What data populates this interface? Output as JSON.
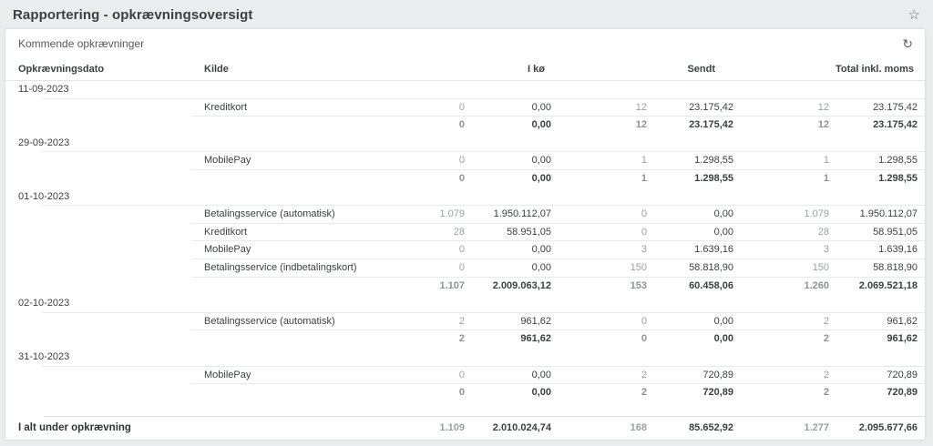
{
  "page": {
    "title": "Rapportering - opkrævningsoversigt"
  },
  "panel": {
    "title": "Kommende opkrævninger"
  },
  "icons": {
    "favorite": "star-outline",
    "refresh": "refresh-arrow"
  },
  "colors": {
    "page_bg": "#eaecee",
    "card_bg": "#ffffff",
    "text": "#3c4043",
    "muted_number": "#9aa0a6",
    "border": "#e9eaec"
  },
  "table": {
    "headers": {
      "date": "Opkrævningsdato",
      "source": "Kilde",
      "queue": "I kø",
      "sent": "Sendt",
      "total": "Total inkl. moms"
    },
    "groups": [
      {
        "date": "11-09-2023",
        "rows": [
          {
            "source": "Kreditkort",
            "values": [
              "0",
              "0,00",
              "12",
              "23.175,42",
              "12",
              "23.175,42"
            ]
          }
        ],
        "subtotal": [
          "0",
          "0,00",
          "12",
          "23.175,42",
          "12",
          "23.175,42"
        ]
      },
      {
        "date": "29-09-2023",
        "rows": [
          {
            "source": "MobilePay",
            "values": [
              "0",
              "0,00",
              "1",
              "1.298,55",
              "1",
              "1.298,55"
            ]
          }
        ],
        "subtotal": [
          "0",
          "0,00",
          "1",
          "1.298,55",
          "1",
          "1.298,55"
        ]
      },
      {
        "date": "01-10-2023",
        "rows": [
          {
            "source": "Betalingsservice (automatisk)",
            "values": [
              "1.079",
              "1.950.112,07",
              "0",
              "0,00",
              "1.079",
              "1.950.112,07"
            ]
          },
          {
            "source": "Kreditkort",
            "values": [
              "28",
              "58.951,05",
              "0",
              "0,00",
              "28",
              "58.951,05"
            ]
          },
          {
            "source": "MobilePay",
            "values": [
              "0",
              "0,00",
              "3",
              "1.639,16",
              "3",
              "1.639,16"
            ]
          },
          {
            "source": "Betalingsservice (indbetalingskort)",
            "values": [
              "0",
              "0,00",
              "150",
              "58.818,90",
              "150",
              "58.818,90"
            ]
          }
        ],
        "subtotal": [
          "1.107",
          "2.009.063,12",
          "153",
          "60.458,06",
          "1.260",
          "2.069.521,18"
        ]
      },
      {
        "date": "02-10-2023",
        "rows": [
          {
            "source": "Betalingsservice (automatisk)",
            "values": [
              "2",
              "961,62",
              "0",
              "0,00",
              "2",
              "961,62"
            ]
          }
        ],
        "subtotal": [
          "2",
          "961,62",
          "0",
          "0,00",
          "2",
          "961,62"
        ]
      },
      {
        "date": "31-10-2023",
        "rows": [
          {
            "source": "MobilePay",
            "values": [
              "0",
              "0,00",
              "2",
              "720,89",
              "2",
              "720,89"
            ]
          }
        ],
        "subtotal": [
          "0",
          "0,00",
          "2",
          "720,89",
          "2",
          "720,89"
        ]
      }
    ],
    "footer": {
      "label": "I alt under opkrævning",
      "values": [
        "1.109",
        "2.010.024,74",
        "168",
        "85.652,92",
        "1.277",
        "2.095.677,66"
      ]
    }
  }
}
